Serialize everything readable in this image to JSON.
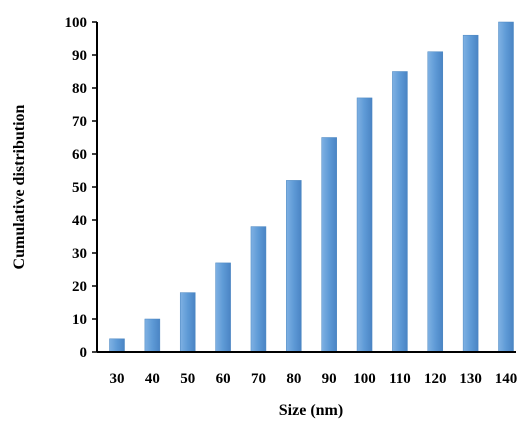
{
  "chart_data": {
    "type": "bar",
    "title": "",
    "xlabel": "Size (nm)",
    "ylabel": "Cumulative distribution",
    "categories": [
      "30",
      "40",
      "50",
      "60",
      "70",
      "80",
      "90",
      "100",
      "110",
      "120",
      "130",
      "140"
    ],
    "values": [
      4,
      10,
      18,
      27,
      38,
      52,
      65,
      77,
      85,
      91,
      96,
      100
    ],
    "ylim": [
      0,
      100
    ],
    "yticks": [
      0,
      10,
      20,
      30,
      40,
      50,
      60,
      70,
      80,
      90,
      100
    ],
    "grid": false,
    "legend": "none",
    "colors": {
      "bar": "#5b9bd5",
      "bar_edge": "#4a86c0",
      "axis": "#000000"
    }
  }
}
